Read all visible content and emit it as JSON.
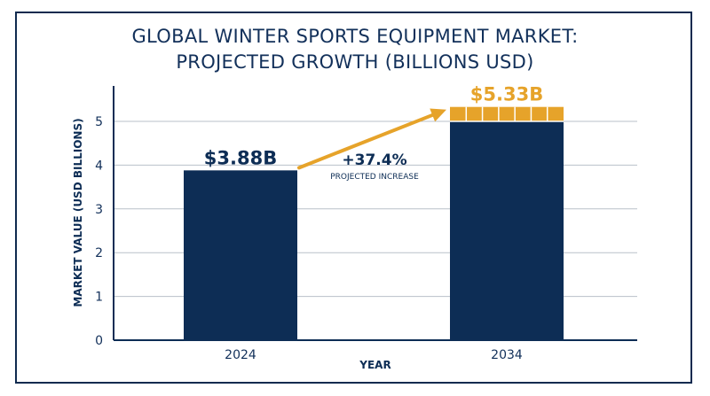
{
  "title_line1": "GLOBAL WINTER SPORTS EQUIPMENT MARKET:",
  "title_line2": "PROJECTED GROWTH (BILLIONS USD)",
  "colors": {
    "bar": "#0d2d55",
    "accent": "#e6a32a",
    "text": "#12305a",
    "grid": "#b9c0c9"
  },
  "chart_data": {
    "type": "bar",
    "categories": [
      "2024",
      "2034"
    ],
    "values": [
      3.88,
      5.33
    ],
    "value_labels": [
      "$3.88B",
      "$5.33B"
    ],
    "xlabel": "YEAR",
    "ylabel": "MARKET VALUE (USD BILLIONS)",
    "ylim": [
      0,
      5.5
    ],
    "yticks": [
      0,
      1,
      2,
      3,
      4,
      5
    ],
    "grid": true,
    "annotation": {
      "text": "+37.4%",
      "subtext": "PROJECTED INCREASE"
    }
  }
}
